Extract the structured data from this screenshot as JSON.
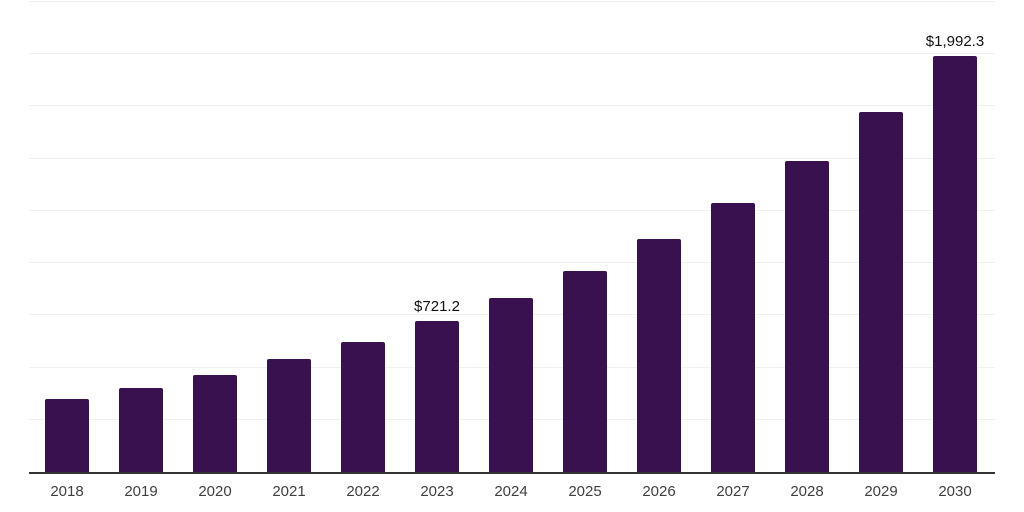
{
  "chart_data": {
    "type": "bar",
    "categories": [
      "2018",
      "2019",
      "2020",
      "2021",
      "2022",
      "2023",
      "2024",
      "2025",
      "2026",
      "2027",
      "2028",
      "2029",
      "2030"
    ],
    "values": [
      348.9,
      403.4,
      466.5,
      539.4,
      623.7,
      721.2,
      833.9,
      964.3,
      1115.1,
      1289.4,
      1490.9,
      1723.9,
      1992.3
    ],
    "labeled_points": [
      {
        "category": "2023",
        "label": "$721.2"
      },
      {
        "category": "2030",
        "label": "$1,992.3"
      }
    ],
    "ylim": [
      0,
      2250
    ],
    "grid": {
      "visible": true,
      "interval": 250,
      "color": "#F2F2F2"
    },
    "legend": "none",
    "colors": {
      "bar": "#39114E",
      "axis_line": "#333333",
      "tick_label": "#3F3F3F",
      "data_label": "#111111"
    }
  }
}
